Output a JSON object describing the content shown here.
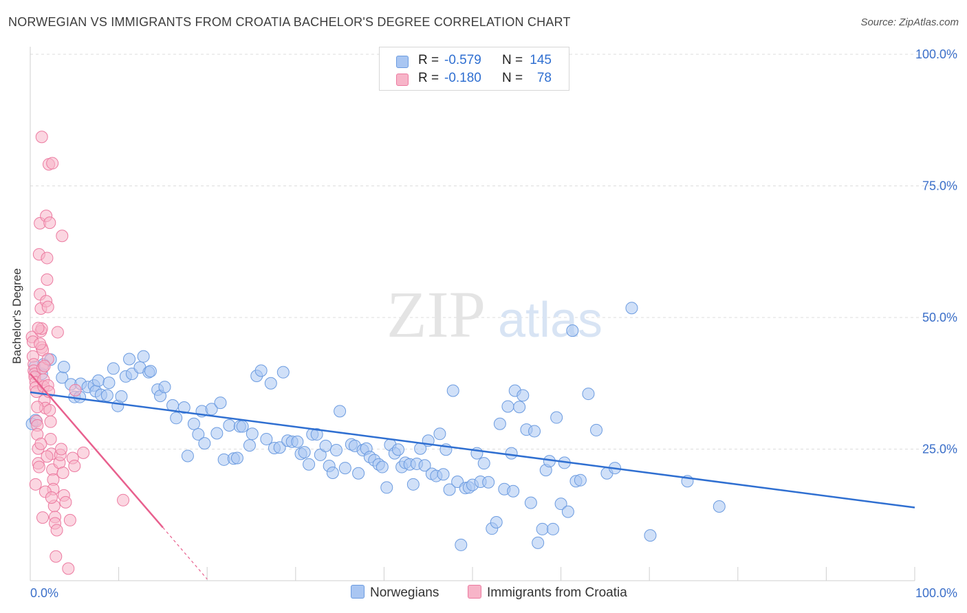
{
  "header": {
    "title": "NORWEGIAN VS IMMIGRANTS FROM CROATIA BACHELOR'S DEGREE CORRELATION CHART",
    "source": "Source: ZipAtlas.com"
  },
  "watermark": {
    "zip": "ZIP",
    "atlas": "atlas"
  },
  "legend": {
    "rows": [
      {
        "r_label": "R =",
        "r_value": "-0.579",
        "n_label": "N =",
        "n_value": "145",
        "color": "#a9c6f2"
      },
      {
        "r_label": "R =",
        "r_value": "-0.180",
        "n_label": "N =",
        "n_value": "78",
        "color": "#f7b4c8"
      }
    ]
  },
  "bottom_legend": {
    "items": [
      {
        "label": "Norwegians",
        "color": "#a9c6f2"
      },
      {
        "label": "Immigrants from Croatia",
        "color": "#f7b4c8"
      }
    ]
  },
  "colors": {
    "blue_fill": "#a9c6f2",
    "blue_stroke": "#6b9be0",
    "blue_line": "#2f6fd1",
    "pink_fill": "#f7b4c8",
    "pink_stroke": "#ec7aa0",
    "pink_line": "#e8608e",
    "tick_text": "#3b6fc9",
    "grid": "#dcdcdc"
  },
  "chart_data": {
    "type": "scatter",
    "title": "NORWEGIAN VS IMMIGRANTS FROM CROATIA BACHELOR'S DEGREE CORRELATION CHART",
    "xlabel": "",
    "ylabel": "Bachelor's Degree",
    "xlim": [
      0,
      100
    ],
    "ylim": [
      0,
      100
    ],
    "x_tick_labels": [
      "0.0%",
      "100.0%"
    ],
    "y_tick_labels": [
      "25.0%",
      "50.0%",
      "75.0%",
      "100.0%"
    ],
    "y_ticks": [
      25,
      50,
      75,
      100
    ],
    "grid": true,
    "legend_position": "top-center",
    "series": [
      {
        "name": "Norwegians",
        "r": -0.579,
        "n": 145,
        "trend": {
          "x": [
            0,
            100
          ],
          "y": [
            35.8,
            13.9
          ]
        },
        "points": [
          [
            0.2,
            29.8
          ],
          [
            0.5,
            40.6
          ],
          [
            1.3,
            39.3
          ],
          [
            1.5,
            41.1
          ],
          [
            2.3,
            42
          ],
          [
            3.6,
            38.6
          ],
          [
            3.8,
            40.6
          ],
          [
            4.6,
            37.3
          ],
          [
            5.0,
            34.9
          ],
          [
            5.6,
            34.9
          ],
          [
            5.7,
            37.4
          ],
          [
            6.5,
            36.8
          ],
          [
            7.2,
            37.1
          ],
          [
            7.4,
            36.0
          ],
          [
            7.7,
            38.0
          ],
          [
            8.0,
            35.3
          ],
          [
            8.7,
            35.2
          ],
          [
            8.9,
            37.6
          ],
          [
            9.4,
            40.3
          ],
          [
            9.9,
            33.2
          ],
          [
            10.3,
            35
          ],
          [
            10.8,
            38.8
          ],
          [
            11.2,
            42.1
          ],
          [
            11.5,
            39.3
          ],
          [
            12.4,
            40.5
          ],
          [
            12.8,
            42.6
          ],
          [
            13.4,
            39.6
          ],
          [
            13.6,
            39.8
          ],
          [
            14.4,
            36.3
          ],
          [
            14.7,
            35.1
          ],
          [
            15.2,
            36.8
          ],
          [
            16.1,
            33.3
          ],
          [
            16.5,
            30.9
          ],
          [
            17.4,
            32.9
          ],
          [
            17.8,
            23.7
          ],
          [
            18.5,
            29.8
          ],
          [
            19.0,
            27.8
          ],
          [
            19.4,
            32.2
          ],
          [
            19.7,
            26.1
          ],
          [
            20.5,
            32.6
          ],
          [
            21.1,
            28
          ],
          [
            21.5,
            33.8
          ],
          [
            21.9,
            23
          ],
          [
            22.5,
            29.5
          ],
          [
            23.0,
            23.2
          ],
          [
            23.4,
            23.3
          ],
          [
            23.7,
            29.3
          ],
          [
            24.0,
            29.3
          ],
          [
            24.8,
            25.7
          ],
          [
            25.1,
            27.9
          ],
          [
            25.6,
            38.9
          ],
          [
            26.1,
            39.9
          ],
          [
            26.7,
            26.9
          ],
          [
            27.2,
            37.5
          ],
          [
            27.6,
            25.2
          ],
          [
            28.2,
            25.3
          ],
          [
            28.6,
            39.6
          ],
          [
            29.1,
            26.6
          ],
          [
            29.6,
            26.4
          ],
          [
            30.2,
            26.4
          ],
          [
            30.6,
            24.1
          ],
          [
            31.0,
            24.4
          ],
          [
            31.5,
            22.1
          ],
          [
            31.9,
            27.8
          ],
          [
            32.4,
            27.8
          ],
          [
            32.8,
            23.9
          ],
          [
            33.4,
            25.6
          ],
          [
            33.8,
            21.8
          ],
          [
            34.2,
            20.5
          ],
          [
            34.6,
            24.8
          ],
          [
            35.0,
            32.2
          ],
          [
            35.6,
            21.4
          ],
          [
            36.3,
            25.9
          ],
          [
            36.7,
            25.6
          ],
          [
            37.1,
            20.4
          ],
          [
            37.6,
            24.8
          ],
          [
            38.0,
            25.1
          ],
          [
            38.4,
            23.5
          ],
          [
            38.9,
            22.9
          ],
          [
            39.4,
            22.1
          ],
          [
            39.8,
            21.6
          ],
          [
            40.3,
            17.7
          ],
          [
            40.7,
            25.8
          ],
          [
            41.2,
            24.2
          ],
          [
            41.6,
            24.9
          ],
          [
            42.0,
            21.6
          ],
          [
            42.4,
            22.4
          ],
          [
            42.9,
            22.1
          ],
          [
            43.3,
            18.3
          ],
          [
            43.7,
            22.2
          ],
          [
            44.1,
            25.1
          ],
          [
            44.6,
            21.9
          ],
          [
            45.0,
            26.6
          ],
          [
            45.4,
            20.3
          ],
          [
            45.9,
            19.9
          ],
          [
            46.3,
            27.9
          ],
          [
            46.7,
            20.2
          ],
          [
            47.0,
            24.9
          ],
          [
            47.4,
            17.3
          ],
          [
            47.8,
            36.1
          ],
          [
            48.3,
            18.8
          ],
          [
            48.7,
            6.8
          ],
          [
            49.2,
            17.6
          ],
          [
            49.6,
            17.7
          ],
          [
            50.0,
            18.2
          ],
          [
            50.5,
            24.2
          ],
          [
            50.9,
            18.8
          ],
          [
            51.3,
            22.3
          ],
          [
            51.8,
            18.7
          ],
          [
            52.2,
            9.9
          ],
          [
            52.7,
            11.1
          ],
          [
            53.1,
            29.8
          ],
          [
            53.6,
            17.4
          ],
          [
            54.0,
            33.1
          ],
          [
            54.4,
            24.2
          ],
          [
            54.8,
            36.1
          ],
          [
            55.3,
            33.0
          ],
          [
            55.7,
            35.2
          ],
          [
            56.1,
            28.7
          ],
          [
            56.6,
            14.8
          ],
          [
            57.0,
            28.4
          ],
          [
            57.4,
            7.2
          ],
          [
            57.9,
            9.8
          ],
          [
            58.3,
            21
          ],
          [
            58.7,
            22.7
          ],
          [
            59.1,
            9.8
          ],
          [
            59.5,
            31.0
          ],
          [
            60.0,
            14.6
          ],
          [
            60.4,
            22.4
          ],
          [
            60.8,
            13.1
          ],
          [
            61.3,
            47.5
          ],
          [
            61.7,
            18.9
          ],
          [
            62.2,
            19.1
          ],
          [
            63.1,
            35.5
          ],
          [
            64.0,
            28.6
          ],
          [
            65.2,
            20.4
          ],
          [
            66.1,
            21.4
          ],
          [
            68.0,
            51.8
          ],
          [
            70.1,
            8.6
          ],
          [
            74.3,
            18.9
          ],
          [
            77.9,
            14.1
          ],
          [
            54.6,
            17.0
          ],
          [
            0.6,
            30.5
          ]
        ]
      },
      {
        "name": "Immigrants from Croatia",
        "r": -0.18,
        "n": 78,
        "trend": {
          "x": [
            0,
            15,
            20
          ],
          "y": [
            39.3,
            10.1,
            0.3
          ]
        },
        "points": [
          [
            0.2,
            46.3
          ],
          [
            0.3,
            45.4
          ],
          [
            0.3,
            42.6
          ],
          [
            0.4,
            41.1
          ],
          [
            0.4,
            39.9
          ],
          [
            0.5,
            39.3
          ],
          [
            0.5,
            38.7
          ],
          [
            0.6,
            37.7
          ],
          [
            0.6,
            36.7
          ],
          [
            0.7,
            35.9
          ],
          [
            0.7,
            30.3
          ],
          [
            0.8,
            29.5
          ],
          [
            0.8,
            27.8
          ],
          [
            0.9,
            25.1
          ],
          [
            0.9,
            22.3
          ],
          [
            1.0,
            21.6
          ],
          [
            1.0,
            62.0
          ],
          [
            1.1,
            67.9
          ],
          [
            1.1,
            54.4
          ],
          [
            1.2,
            51.7
          ],
          [
            1.2,
            47.4
          ],
          [
            1.3,
            47.9
          ],
          [
            1.3,
            44.3
          ],
          [
            1.4,
            43.8
          ],
          [
            1.4,
            40.4
          ],
          [
            1.5,
            38.2
          ],
          [
            1.5,
            36.9
          ],
          [
            1.6,
            34.2
          ],
          [
            1.7,
            32.8
          ],
          [
            1.8,
            69.3
          ],
          [
            1.8,
            53.1
          ],
          [
            1.9,
            61.3
          ],
          [
            1.9,
            57.2
          ],
          [
            2.0,
            42.1
          ],
          [
            2.0,
            37.1
          ],
          [
            2.1,
            35.9
          ],
          [
            2.2,
            32.4
          ],
          [
            2.3,
            30.2
          ],
          [
            2.3,
            26.9
          ],
          [
            2.4,
            24.1
          ],
          [
            2.5,
            21.1
          ],
          [
            2.6,
            19.2
          ],
          [
            2.6,
            17.4
          ],
          [
            2.7,
            14.2
          ],
          [
            2.8,
            12.1
          ],
          [
            2.8,
            10.9
          ],
          [
            2.9,
            4.6
          ],
          [
            3.0,
            9.6
          ],
          [
            3.1,
            47.2
          ],
          [
            3.3,
            22.4
          ],
          [
            3.4,
            23.9
          ],
          [
            3.6,
            65.5
          ],
          [
            3.7,
            20.5
          ],
          [
            3.8,
            16.2
          ],
          [
            4.0,
            14.9
          ],
          [
            4.3,
            2.3
          ],
          [
            4.5,
            11.5
          ],
          [
            4.8,
            23.3
          ],
          [
            5.0,
            21.8
          ],
          [
            5.1,
            36.2
          ],
          [
            6.0,
            24.3
          ],
          [
            10.5,
            15.3
          ],
          [
            1.3,
            84.3
          ],
          [
            2.1,
            79.1
          ],
          [
            2.2,
            68.0
          ],
          [
            2.5,
            79.3
          ],
          [
            1.1,
            45.0
          ],
          [
            0.9,
            48.0
          ],
          [
            1.6,
            40.8
          ],
          [
            1.7,
            16.9
          ],
          [
            1.2,
            26.0
          ],
          [
            1.4,
            12.0
          ],
          [
            0.8,
            33.0
          ],
          [
            1.9,
            23.6
          ],
          [
            2.4,
            15.8
          ],
          [
            0.6,
            18.3
          ],
          [
            3.5,
            25.0
          ],
          [
            2.0,
            52.0
          ]
        ]
      }
    ]
  }
}
